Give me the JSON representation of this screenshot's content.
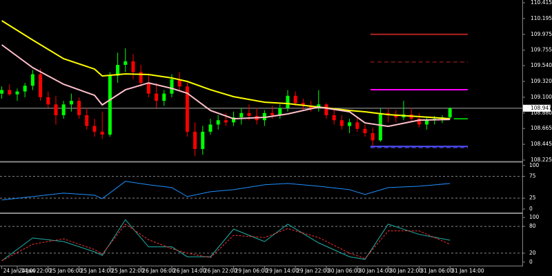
{
  "chart_data": [
    {
      "type": "candlestick",
      "x": [
        0,
        1,
        2,
        3,
        4,
        5,
        6,
        7,
        8,
        9,
        10,
        11,
        12,
        13,
        14,
        15,
        16,
        17,
        18,
        19,
        20,
        21,
        22,
        23,
        24,
        25,
        26,
        27,
        28,
        29,
        30,
        31,
        32,
        33,
        34,
        35,
        36,
        37,
        38,
        39,
        40,
        41,
        42,
        43,
        44,
        45,
        46,
        47,
        48,
        49,
        50,
        51,
        52,
        53,
        54,
        55,
        56,
        57,
        58
      ],
      "open": [
        109.15,
        109.2,
        109.14,
        109.18,
        109.26,
        109.42,
        109.1,
        109.0,
        108.85,
        109.0,
        109.05,
        108.85,
        108.7,
        108.62,
        108.58,
        109.4,
        109.55,
        109.6,
        109.45,
        109.3,
        109.15,
        109.05,
        109.15,
        109.35,
        109.25,
        108.62,
        108.38,
        108.62,
        108.72,
        108.78,
        108.75,
        108.82,
        108.88,
        108.84,
        108.78,
        108.88,
        108.85,
        108.95,
        109.12,
        109.02,
        108.98,
        108.95,
        109.0,
        108.85,
        108.78,
        108.7,
        108.75,
        108.66,
        108.6,
        108.5,
        108.88,
        108.85,
        108.82,
        108.86,
        108.8,
        108.72,
        108.78,
        108.8,
        108.82
      ],
      "high": [
        109.25,
        109.28,
        109.22,
        109.3,
        109.48,
        109.5,
        109.18,
        109.12,
        109.05,
        109.15,
        109.1,
        108.95,
        108.8,
        108.9,
        109.45,
        109.72,
        109.78,
        109.7,
        109.55,
        109.42,
        109.3,
        109.2,
        109.42,
        109.45,
        109.3,
        108.75,
        108.7,
        108.8,
        108.85,
        108.88,
        108.9,
        108.95,
        109.0,
        108.95,
        108.92,
        108.98,
        109.0,
        109.2,
        109.18,
        109.08,
        109.05,
        109.2,
        109.02,
        108.92,
        108.85,
        108.8,
        108.82,
        108.72,
        108.68,
        108.95,
        108.95,
        108.92,
        109.05,
        108.95,
        108.88,
        108.82,
        108.84,
        108.85,
        108.96
      ],
      "low": [
        109.08,
        109.12,
        109.05,
        109.1,
        109.2,
        109.05,
        108.95,
        108.72,
        108.8,
        108.9,
        108.8,
        108.65,
        108.55,
        108.52,
        108.55,
        109.3,
        109.45,
        109.35,
        109.25,
        109.1,
        108.95,
        108.98,
        109.1,
        109.2,
        108.55,
        108.28,
        108.3,
        108.58,
        108.65,
        108.7,
        108.7,
        108.72,
        108.78,
        108.72,
        108.7,
        108.8,
        108.8,
        108.9,
        108.98,
        108.92,
        108.9,
        108.9,
        108.8,
        108.72,
        108.65,
        108.6,
        108.62,
        108.55,
        108.42,
        108.48,
        108.75,
        108.75,
        108.78,
        108.75,
        108.68,
        108.65,
        108.72,
        108.74,
        108.8
      ],
      "close": [
        109.2,
        109.14,
        109.18,
        109.26,
        109.42,
        109.1,
        109.0,
        108.85,
        109.0,
        109.05,
        108.85,
        108.7,
        108.62,
        108.58,
        109.4,
        109.55,
        109.6,
        109.45,
        109.3,
        109.15,
        109.05,
        109.15,
        109.35,
        109.25,
        108.62,
        108.38,
        108.62,
        108.72,
        108.78,
        108.75,
        108.82,
        108.88,
        108.84,
        108.78,
        108.88,
        108.85,
        108.95,
        109.12,
        109.02,
        108.98,
        108.95,
        109.0,
        108.85,
        108.78,
        108.7,
        108.75,
        108.66,
        108.6,
        108.5,
        108.88,
        108.85,
        108.82,
        108.86,
        108.8,
        108.72,
        108.78,
        108.8,
        108.82,
        108.947
      ],
      "up_color": "#00ff00",
      "down_color": "#ff0000",
      "series": [
        {
          "color": "#ffff00",
          "x": [
            0,
            4,
            8,
            12,
            13,
            16,
            19,
            22,
            24,
            27,
            30,
            34,
            37,
            41,
            45,
            47,
            50,
            54,
            58
          ],
          "values": [
            110.165,
            109.896,
            109.636,
            109.492,
            109.396,
            109.425,
            109.416,
            109.368,
            109.32,
            109.204,
            109.108,
            109.031,
            109.012,
            108.964,
            108.916,
            108.897,
            108.858,
            108.83,
            108.801
          ]
        },
        {
          "color": "#ffc0cb",
          "x": [
            0,
            4,
            8,
            12,
            13,
            16,
            19,
            22,
            24,
            27,
            30,
            34,
            37,
            41,
            45,
            47,
            50,
            54,
            58
          ],
          "values": [
            109.829,
            109.512,
            109.281,
            109.127,
            108.993,
            109.204,
            109.3,
            109.223,
            109.156,
            108.916,
            108.8,
            108.82,
            108.868,
            108.964,
            108.897,
            108.743,
            108.695,
            108.781,
            108.791
          ]
        }
      ],
      "levels": [
        {
          "value": 109.975,
          "color": "#b22222",
          "from": 47.7,
          "to": 60.3
        },
        {
          "value": 109.59,
          "color": "#b22222",
          "dash": true,
          "from": 47.7,
          "to": 60.3
        },
        {
          "value": 109.205,
          "color": "#ff00ff",
          "from": 47.7,
          "to": 60.3
        },
        {
          "value": 108.8,
          "color": "#00c000",
          "from": 58.5,
          "to": 60.3
        },
        {
          "value": 108.415,
          "color": "#5050ff",
          "from": 47.7,
          "to": 60.3
        },
        {
          "value": 108.398,
          "color": "#5050ff",
          "dash": true,
          "from": 47.7,
          "to": 60.3
        }
      ],
      "current_price": 108.947,
      "xlim": [
        -0.23,
        67.36
      ],
      "xticks": [
        {
          "value": 0,
          "label": "24 Jan 14:00"
        },
        {
          "value": 2,
          "label": "24 Jan 22:00"
        },
        {
          "value": 6,
          "label": "25 Jan 06:00"
        },
        {
          "value": 10,
          "label": "25 Jan 14:00"
        },
        {
          "value": 14,
          "label": "25 Jan 22:00"
        },
        {
          "value": 18,
          "label": "26 Jan 06:00"
        },
        {
          "value": 22,
          "label": "26 Jan 14:00"
        },
        {
          "value": 26,
          "label": "26 Jan 22:00"
        },
        {
          "value": 30,
          "label": "29 Jan 06:00"
        },
        {
          "value": 34,
          "label": "29 Jan 14:00"
        },
        {
          "value": 38,
          "label": "29 Jan 22:00"
        },
        {
          "value": 42,
          "label": "30 Jan 06:00"
        },
        {
          "value": 46,
          "label": "30 Jan 14:00"
        },
        {
          "value": 50,
          "label": "30 Jan 22:00"
        },
        {
          "value": 54,
          "label": "31 Jan 06:00"
        },
        {
          "value": 58,
          "label": "31 Jan 14:00"
        }
      ],
      "ylim": [
        108.206,
        110.453
      ],
      "yticks": [
        110.415,
        110.195,
        109.975,
        109.755,
        {
          "value": 109.54,
          "label": "109.540"
        },
        {
          "value": 109.32,
          "label": "109.320"
        },
        {
          "value": 109.1,
          "label": "109.100"
        },
        {
          "value": 108.88,
          "label": "108.880"
        },
        108.665,
        108.445,
        108.225
      ]
    },
    {
      "type": "line",
      "series": [
        {
          "color": "#1e90ff",
          "x": [
            0,
            4,
            8,
            12,
            13,
            16,
            19,
            22,
            24,
            27,
            30,
            34,
            37,
            41,
            45,
            47,
            50,
            54,
            58
          ],
          "values": [
            20.6,
            28.6,
            36.5,
            31.7,
            23.8,
            63.5,
            55.6,
            49.2,
            28.6,
            39.7,
            44.4,
            55.6,
            58.7,
            52.4,
            44.4,
            33.3,
            49.2,
            52.4,
            58.7
          ]
        }
      ],
      "levels": [
        75,
        25
      ],
      "ylim": [
        -8,
        106
      ],
      "yticks": [
        100,
        75,
        25,
        0
      ]
    },
    {
      "type": "line",
      "series": [
        {
          "color": "#20b2aa",
          "x": [
            0,
            4,
            8,
            12,
            13,
            16,
            19,
            22,
            24,
            27,
            30,
            34,
            37,
            41,
            45,
            47,
            50,
            54,
            58
          ],
          "values": [
            3,
            54,
            46,
            23,
            15,
            95,
            34,
            34,
            12,
            12,
            74,
            46,
            85,
            43,
            12,
            6,
            85,
            62,
            49
          ]
        },
        {
          "color": "#ff3030",
          "dash": true,
          "x": [
            0,
            4,
            8,
            12,
            13,
            16,
            19,
            22,
            24,
            27,
            30,
            34,
            37,
            41,
            45,
            47,
            50,
            54,
            58
          ],
          "values": [
            3,
            40,
            52,
            28,
            18,
            85,
            50,
            30,
            20,
            10,
            60,
            55,
            75,
            55,
            20,
            8,
            70,
            70,
            40
          ]
        }
      ],
      "levels": [
        80,
        20
      ],
      "ylim": [
        -8,
        108
      ],
      "yticks": [
        100,
        80,
        20,
        0
      ]
    }
  ]
}
